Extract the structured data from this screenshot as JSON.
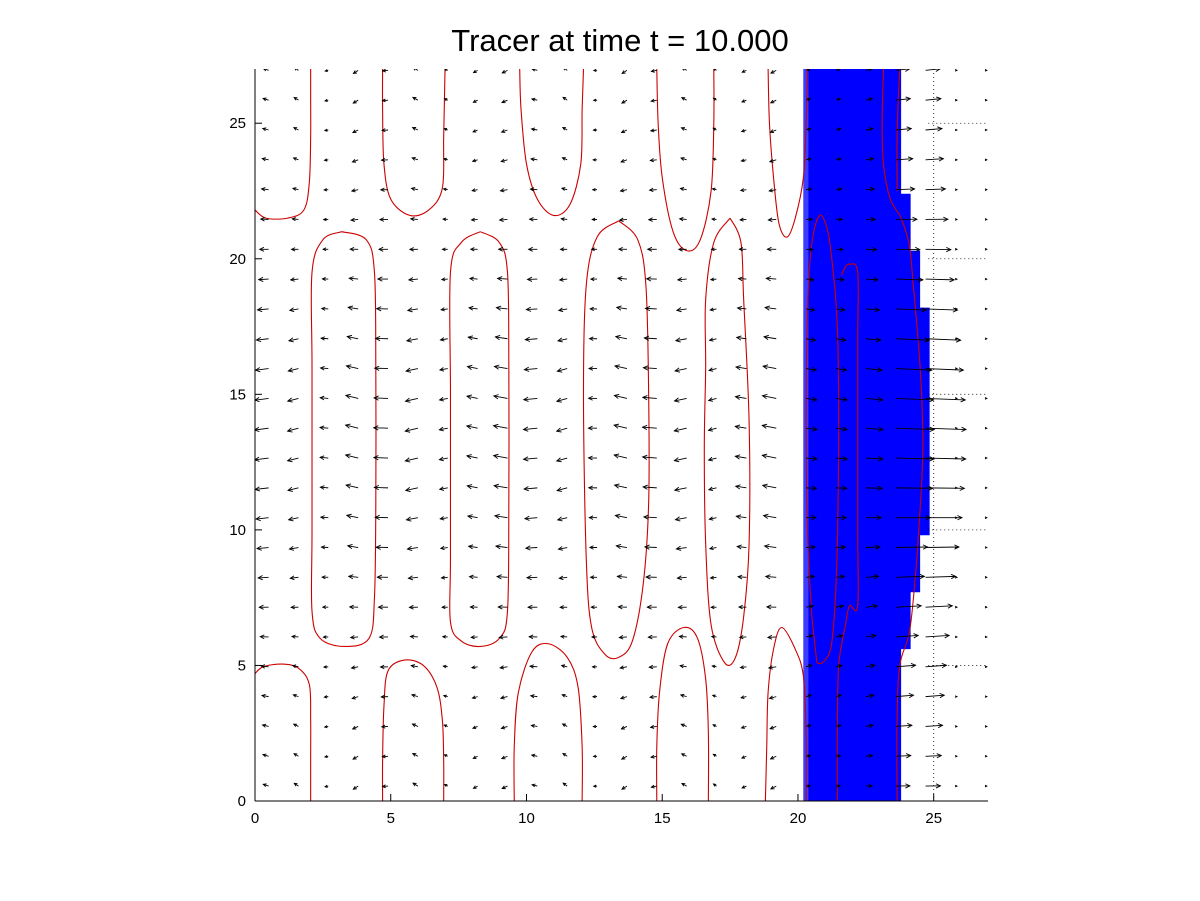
{
  "chart_data": {
    "type": "quiver-contour",
    "title": "Tracer at time t = 10.000",
    "xlabel": "",
    "ylabel": "",
    "xlim": [
      0,
      27
    ],
    "ylim": [
      0,
      27
    ],
    "x_ticks": [
      0,
      5,
      10,
      15,
      20,
      25
    ],
    "x_tick_labels": [
      "0",
      "5",
      "10",
      "15",
      "20",
      "25"
    ],
    "y_ticks": [
      0,
      5,
      10,
      15,
      20,
      25
    ],
    "y_tick_labels": [
      "0",
      "5",
      "10",
      "15",
      "20",
      "25"
    ],
    "grid": false,
    "colors": {
      "tracer": "#0000ff",
      "tracer_edge": "#3c3cff",
      "contour": "#cc0000",
      "arrow": "#000000",
      "axes": "#000000"
    },
    "tracer_region": {
      "description": "blue filled tracer band on the right",
      "left_x": 20.2,
      "right_edge": [
        [
          0,
          23.9
        ],
        [
          2,
          23.9
        ],
        [
          4,
          23.8
        ],
        [
          5,
          23.8
        ],
        [
          6,
          24.2
        ],
        [
          7,
          24.3
        ],
        [
          8,
          24.5
        ],
        [
          9,
          24.5
        ],
        [
          10,
          24.8
        ],
        [
          11,
          24.8
        ],
        [
          12,
          24.9
        ],
        [
          14,
          25.0
        ],
        [
          15,
          25.0
        ],
        [
          16,
          24.9
        ],
        [
          17,
          24.8
        ],
        [
          18,
          24.6
        ],
        [
          19,
          24.5
        ],
        [
          20,
          24.3
        ],
        [
          21,
          24.2
        ],
        [
          22,
          24.0
        ],
        [
          23,
          23.9
        ],
        [
          24,
          23.9
        ],
        [
          25,
          23.9
        ],
        [
          27,
          23.9
        ]
      ]
    },
    "contours": [
      {
        "id": "c-bottom-left",
        "points": [
          [
            0,
            4.7
          ],
          [
            0.3,
            4.95
          ],
          [
            1.0,
            5.05
          ],
          [
            1.6,
            4.9
          ],
          [
            2.0,
            4.3
          ],
          [
            2.05,
            3.0
          ],
          [
            2.05,
            1.5
          ],
          [
            2.05,
            0
          ]
        ]
      },
      {
        "id": "c-top-left",
        "points": [
          [
            0,
            21.8
          ],
          [
            0.4,
            21.5
          ],
          [
            1.2,
            21.5
          ],
          [
            1.8,
            21.8
          ],
          [
            2.0,
            22.8
          ],
          [
            2.05,
            24.5
          ],
          [
            2.05,
            26
          ],
          [
            2.05,
            27
          ]
        ]
      },
      {
        "id": "c-col1",
        "points": [
          [
            3.2,
            21.0
          ],
          [
            2.5,
            20.7
          ],
          [
            2.1,
            19.5
          ],
          [
            2.1,
            16
          ],
          [
            2.1,
            10
          ],
          [
            2.1,
            7.0
          ],
          [
            2.4,
            6.0
          ],
          [
            3.3,
            5.7
          ],
          [
            4.2,
            6.0
          ],
          [
            4.4,
            7.5
          ],
          [
            4.45,
            11
          ],
          [
            4.45,
            16
          ],
          [
            4.4,
            19.5
          ],
          [
            4.1,
            20.7
          ],
          [
            3.2,
            21.0
          ]
        ]
      },
      {
        "id": "c-bot2",
        "points": [
          [
            4.7,
            0
          ],
          [
            4.7,
            1.5
          ],
          [
            4.75,
            3.5
          ],
          [
            4.9,
            4.8
          ],
          [
            5.5,
            5.2
          ],
          [
            6.2,
            5.0
          ],
          [
            6.7,
            4.2
          ],
          [
            6.9,
            3.0
          ],
          [
            6.95,
            1.5
          ],
          [
            6.95,
            0
          ]
        ]
      },
      {
        "id": "c-top2",
        "points": [
          [
            4.7,
            27
          ],
          [
            4.7,
            25.5
          ],
          [
            4.75,
            23.5
          ],
          [
            5.0,
            22.2
          ],
          [
            5.7,
            21.6
          ],
          [
            6.4,
            21.8
          ],
          [
            6.9,
            22.6
          ],
          [
            6.95,
            24.5
          ],
          [
            7.0,
            27
          ]
        ]
      },
      {
        "id": "c-col2",
        "points": [
          [
            8.3,
            21.0
          ],
          [
            7.6,
            20.6
          ],
          [
            7.2,
            19.5
          ],
          [
            7.2,
            15
          ],
          [
            7.2,
            9
          ],
          [
            7.2,
            6.6
          ],
          [
            7.6,
            5.9
          ],
          [
            8.3,
            5.7
          ],
          [
            9.0,
            6.0
          ],
          [
            9.3,
            7.0
          ],
          [
            9.35,
            11
          ],
          [
            9.35,
            16
          ],
          [
            9.3,
            19.5
          ],
          [
            9.0,
            20.6
          ],
          [
            8.3,
            21.0
          ]
        ]
      },
      {
        "id": "c-bot3",
        "points": [
          [
            9.55,
            0
          ],
          [
            9.55,
            2.0
          ],
          [
            9.7,
            4.0
          ],
          [
            10.2,
            5.5
          ],
          [
            10.8,
            5.8
          ],
          [
            11.5,
            5.3
          ],
          [
            11.9,
            4.2
          ],
          [
            12.05,
            2.0
          ],
          [
            12.05,
            0
          ]
        ]
      },
      {
        "id": "c-top3",
        "points": [
          [
            9.75,
            27
          ],
          [
            9.8,
            25.5
          ],
          [
            10.0,
            23.5
          ],
          [
            10.4,
            22.2
          ],
          [
            11.0,
            21.6
          ],
          [
            11.6,
            22.0
          ],
          [
            12.0,
            23.5
          ],
          [
            12.05,
            25.5
          ],
          [
            12.1,
            27
          ]
        ]
      },
      {
        "id": "c-col3",
        "points": [
          [
            13.4,
            21.4
          ],
          [
            12.6,
            20.8
          ],
          [
            12.2,
            19.0
          ],
          [
            12.1,
            15
          ],
          [
            12.2,
            9
          ],
          [
            12.4,
            6.4
          ],
          [
            12.9,
            5.4
          ],
          [
            13.4,
            5.3
          ],
          [
            13.9,
            5.9
          ],
          [
            14.3,
            8.0
          ],
          [
            14.5,
            11
          ],
          [
            14.5,
            15
          ],
          [
            14.4,
            19.0
          ],
          [
            14.1,
            20.7
          ],
          [
            13.4,
            21.4
          ]
        ]
      },
      {
        "id": "c-bot4",
        "points": [
          [
            14.8,
            0
          ],
          [
            14.8,
            2.0
          ],
          [
            14.9,
            4.0
          ],
          [
            15.2,
            5.8
          ],
          [
            15.8,
            6.4
          ],
          [
            16.3,
            6.0
          ],
          [
            16.6,
            4.5
          ],
          [
            16.7,
            2.5
          ],
          [
            16.7,
            0
          ]
        ]
      },
      {
        "id": "c-top4",
        "points": [
          [
            14.8,
            27
          ],
          [
            14.85,
            25.0
          ],
          [
            15.0,
            23.0
          ],
          [
            15.4,
            21.0
          ],
          [
            15.9,
            20.3
          ],
          [
            16.4,
            20.7
          ],
          [
            16.8,
            22.5
          ],
          [
            16.9,
            25.0
          ],
          [
            16.9,
            27
          ]
        ]
      },
      {
        "id": "c-col4",
        "points": [
          [
            17.5,
            21.5
          ],
          [
            16.9,
            20.6
          ],
          [
            16.6,
            18.5
          ],
          [
            16.6,
            16.0
          ],
          [
            16.55,
            13
          ],
          [
            16.6,
            9.5
          ],
          [
            16.8,
            6.5
          ],
          [
            17.3,
            5.1
          ],
          [
            17.7,
            5.3
          ],
          [
            18.0,
            6.8
          ],
          [
            18.2,
            9.5
          ],
          [
            18.2,
            14
          ],
          [
            18.0,
            18.5
          ],
          [
            17.9,
            20.6
          ],
          [
            17.5,
            21.5
          ]
        ]
      },
      {
        "id": "c-bot5",
        "points": [
          [
            18.8,
            0
          ],
          [
            18.85,
            2.0
          ],
          [
            18.9,
            4.0
          ],
          [
            19.1,
            5.6
          ],
          [
            19.4,
            6.4
          ],
          [
            19.9,
            5.6
          ],
          [
            20.2,
            4.6
          ],
          [
            20.3,
            2.5
          ],
          [
            20.3,
            0
          ]
        ]
      },
      {
        "id": "c-top5",
        "points": [
          [
            18.9,
            27
          ],
          [
            18.95,
            25.0
          ],
          [
            19.1,
            23.0
          ],
          [
            19.3,
            21.3
          ],
          [
            19.6,
            20.8
          ],
          [
            19.9,
            21.5
          ],
          [
            20.2,
            23.0
          ],
          [
            20.3,
            25.0
          ],
          [
            20.35,
            27
          ]
        ]
      },
      {
        "id": "c-inner-left",
        "points": [
          [
            20.7,
            5.1
          ],
          [
            20.5,
            7.0
          ],
          [
            20.35,
            10
          ],
          [
            20.3,
            14
          ],
          [
            20.35,
            18
          ],
          [
            20.5,
            20.5
          ],
          [
            20.8,
            21.6
          ],
          [
            21.1,
            21.0
          ],
          [
            21.3,
            19.5
          ],
          [
            21.45,
            17.5
          ],
          [
            21.5,
            14
          ],
          [
            21.45,
            9.5
          ],
          [
            21.35,
            7.0
          ],
          [
            21.2,
            5.6
          ],
          [
            20.9,
            5.1
          ],
          [
            20.7,
            5.1
          ]
        ]
      },
      {
        "id": "c-inner-tail",
        "points": [
          [
            21.45,
            0
          ],
          [
            21.45,
            2.5
          ],
          [
            21.5,
            5.0
          ],
          [
            21.75,
            6.5
          ],
          [
            21.9,
            7.2
          ],
          [
            22.2,
            7.2
          ],
          [
            22.2,
            10
          ],
          [
            22.2,
            14
          ],
          [
            22.2,
            17
          ],
          [
            22.2,
            19.5
          ],
          [
            21.9,
            19.8
          ],
          [
            21.75,
            19.7
          ],
          [
            21.6,
            19.4
          ]
        ]
      },
      {
        "id": "c-outer",
        "points": [
          [
            23.65,
            0
          ],
          [
            23.65,
            3.0
          ],
          [
            23.75,
            5.0
          ],
          [
            24.1,
            6.2
          ],
          [
            24.3,
            8.0
          ],
          [
            24.45,
            10
          ],
          [
            24.6,
            13
          ],
          [
            24.5,
            16
          ],
          [
            24.25,
            19
          ],
          [
            24.1,
            20.5
          ],
          [
            23.8,
            21.5
          ],
          [
            23.4,
            22.2
          ],
          [
            23.15,
            23.5
          ],
          [
            23.1,
            25.0
          ],
          [
            23.15,
            27
          ]
        ]
      },
      {
        "id": "c-outer-top",
        "points": [
          [
            23.65,
            22.5
          ],
          [
            23.65,
            24.5
          ],
          [
            23.7,
            26
          ],
          [
            23.75,
            27
          ]
        ]
      }
    ],
    "quiver": {
      "x_start": 0.5,
      "x_step": 1.1,
      "y_values": [
        0.55,
        1.65,
        2.75,
        3.85,
        4.95,
        6.05,
        7.15,
        8.25,
        9.35,
        10.45,
        11.55,
        12.65,
        13.75,
        14.85,
        15.95,
        17.05,
        18.15,
        19.25,
        20.35,
        21.45,
        22.55,
        23.65,
        24.75,
        25.85,
        26.95
      ],
      "description": "velocity arrows on a regular grid; leftward and weak on the left side, strong rightward near the tracer front"
    }
  }
}
